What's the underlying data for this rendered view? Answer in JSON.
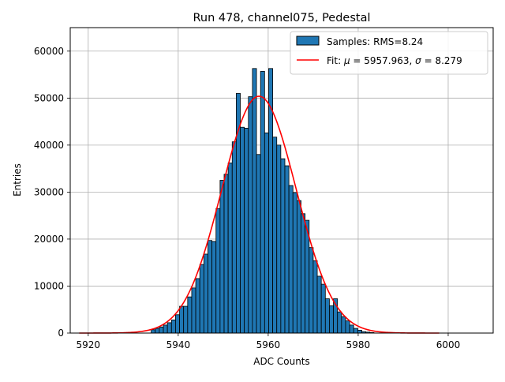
{
  "chart_data": {
    "type": "bar",
    "title": "Run 478, channel075, Pedestal",
    "xlabel": "ADC Counts",
    "ylabel": "Entries",
    "xlim": [
      5916,
      6010
    ],
    "ylim": [
      0,
      65000
    ],
    "xticks": [
      5920,
      5940,
      5960,
      5980,
      6000
    ],
    "yticks": [
      0,
      10000,
      20000,
      30000,
      40000,
      50000,
      60000
    ],
    "grid": true,
    "legend_position": "top-right",
    "histogram": {
      "name": "Samples: RMS=8.24",
      "color": "#1f77b4",
      "edge_color": "#000000",
      "bin_start": 5934,
      "bin_width": 0.9,
      "counts": [
        700,
        1000,
        1300,
        1700,
        2200,
        2800,
        3900,
        5700,
        5700,
        7700,
        9600,
        11600,
        14600,
        16800,
        19700,
        19500,
        26500,
        32500,
        33800,
        36200,
        40700,
        51000,
        43800,
        43600,
        50300,
        56300,
        38000,
        55700,
        42600,
        56300,
        41700,
        40000,
        37100,
        35600,
        31400,
        29900,
        28200,
        25400,
        24000,
        18200,
        15400,
        12100,
        10400,
        7300,
        5800,
        7300,
        4500,
        3500,
        2600,
        1700,
        1000,
        600,
        300,
        200,
        100
      ]
    },
    "fit": {
      "name": "Fit: $\\mu$ = 5957.963, $\\sigma$ = 8.279",
      "color": "#ff0000",
      "mu": 5957.963,
      "sigma": 8.279,
      "amplitude": 50400,
      "x_range": [
        5918,
        5998
      ]
    }
  }
}
